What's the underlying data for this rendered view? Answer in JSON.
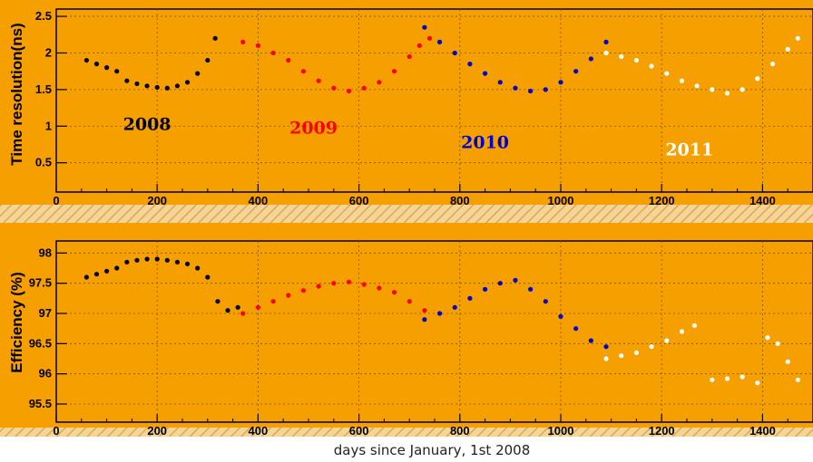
{
  "chart_data": [
    {
      "type": "scatter",
      "ylabel": "Time resolution(ns)",
      "xlim": [
        0,
        1500
      ],
      "ylim": [
        0.1,
        2.6
      ],
      "xticks": [
        0,
        200,
        400,
        600,
        800,
        1000,
        1200,
        1400
      ],
      "yticks": [
        0.5,
        1,
        1.5,
        2,
        2.5
      ],
      "grid": true,
      "background": "#F5A000",
      "annotations": [
        {
          "text": "2008",
          "x": 180,
          "y": 0.95,
          "color": "#000000"
        },
        {
          "text": "2009",
          "x": 510,
          "y": 0.9,
          "color": "#FF0000"
        },
        {
          "text": "2010",
          "x": 850,
          "y": 0.7,
          "color": "#0000CC"
        },
        {
          "text": "2011",
          "x": 1255,
          "y": 0.6,
          "color": "#FFFFFF"
        }
      ],
      "series": [
        {
          "color": "#000000",
          "x": [
            60,
            80,
            100,
            120,
            140,
            160,
            180,
            200,
            220,
            240,
            260,
            280,
            300,
            315
          ],
          "y": [
            1.9,
            1.85,
            1.8,
            1.75,
            1.62,
            1.58,
            1.55,
            1.53,
            1.52,
            1.55,
            1.6,
            1.72,
            1.9,
            2.2
          ]
        },
        {
          "color": "#FF0000",
          "x": [
            370,
            400,
            430,
            460,
            490,
            520,
            550,
            580,
            610,
            640,
            670,
            700,
            720,
            740
          ],
          "y": [
            2.15,
            2.1,
            2.0,
            1.9,
            1.75,
            1.62,
            1.52,
            1.48,
            1.52,
            1.6,
            1.75,
            1.95,
            2.1,
            2.2
          ]
        },
        {
          "color": "#0000CC",
          "x": [
            730,
            760,
            790,
            820,
            850,
            880,
            910,
            940,
            970,
            1000,
            1030,
            1060,
            1090
          ],
          "y": [
            2.35,
            2.15,
            2.0,
            1.85,
            1.72,
            1.6,
            1.52,
            1.48,
            1.5,
            1.6,
            1.75,
            1.92,
            2.15
          ]
        },
        {
          "color": "#FFFFFF",
          "x": [
            1090,
            1120,
            1150,
            1180,
            1210,
            1240,
            1270,
            1300,
            1330,
            1360,
            1390,
            1420,
            1450,
            1470
          ],
          "y": [
            2.0,
            1.95,
            1.9,
            1.82,
            1.72,
            1.62,
            1.55,
            1.5,
            1.45,
            1.5,
            1.65,
            1.85,
            2.05,
            2.2
          ]
        }
      ]
    },
    {
      "type": "scatter",
      "ylabel": "Efficiency (%)",
      "xlabel": "days since January, 1st 2008",
      "xlim": [
        0,
        1500
      ],
      "ylim": [
        95.2,
        98.2
      ],
      "xticks": [
        0,
        200,
        400,
        600,
        800,
        1000,
        1200,
        1400
      ],
      "yticks": [
        95.5,
        96,
        96.5,
        97,
        97.5,
        98
      ],
      "grid": true,
      "background": "#F5A000",
      "series": [
        {
          "color": "#000000",
          "x": [
            60,
            80,
            100,
            120,
            140,
            160,
            180,
            200,
            220,
            240,
            260,
            280,
            300,
            320,
            340,
            360
          ],
          "y": [
            97.6,
            97.65,
            97.7,
            97.75,
            97.85,
            97.88,
            97.9,
            97.9,
            97.88,
            97.85,
            97.82,
            97.75,
            97.6,
            97.2,
            97.05,
            97.1
          ]
        },
        {
          "color": "#FF0000",
          "x": [
            370,
            400,
            430,
            460,
            490,
            520,
            550,
            580,
            610,
            640,
            670,
            700,
            730
          ],
          "y": [
            97.0,
            97.1,
            97.2,
            97.3,
            97.38,
            97.45,
            97.5,
            97.52,
            97.48,
            97.42,
            97.35,
            97.2,
            97.05
          ]
        },
        {
          "color": "#0000CC",
          "x": [
            730,
            760,
            790,
            820,
            850,
            880,
            910,
            940,
            970,
            1000,
            1030,
            1060,
            1090
          ],
          "y": [
            96.9,
            97.0,
            97.1,
            97.25,
            97.4,
            97.5,
            97.55,
            97.4,
            97.2,
            96.95,
            96.75,
            96.55,
            96.45
          ]
        },
        {
          "color": "#FFFFFF",
          "x": [
            1090,
            1120,
            1150,
            1180,
            1210,
            1240,
            1265,
            1300,
            1330,
            1360,
            1390,
            1410,
            1430,
            1450,
            1470
          ],
          "y": [
            96.25,
            96.3,
            96.35,
            96.45,
            96.55,
            96.7,
            96.8,
            95.9,
            95.92,
            95.95,
            95.85,
            96.6,
            96.5,
            96.2,
            95.9
          ]
        }
      ]
    }
  ],
  "colors": {
    "plot_bg": "#F5A000",
    "grid": "#8a6000",
    "hatch": "#E8B860"
  }
}
